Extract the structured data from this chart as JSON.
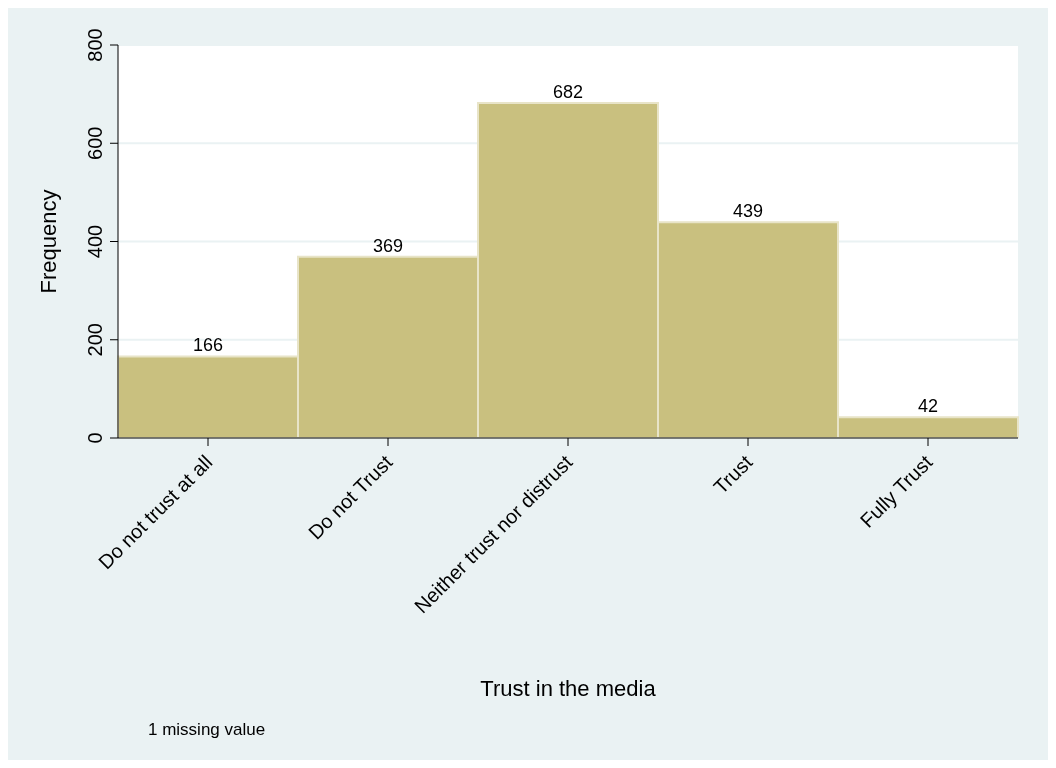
{
  "chart_data": {
    "type": "bar",
    "xlabel": "Trust in the media",
    "ylabel": "Frequency",
    "categories": [
      "Do not trust at all",
      "Do not Trust",
      "Neither trust nor distrust",
      "Trust",
      "Fully Trust"
    ],
    "values": [
      166,
      369,
      682,
      439,
      42
    ],
    "color": "#c9c07f",
    "ylim": [
      0,
      800
    ],
    "yticks": [
      0,
      200,
      400,
      600,
      800
    ],
    "grid": "y",
    "data_labels": true,
    "annotations": [
      "1 missing value"
    ]
  }
}
